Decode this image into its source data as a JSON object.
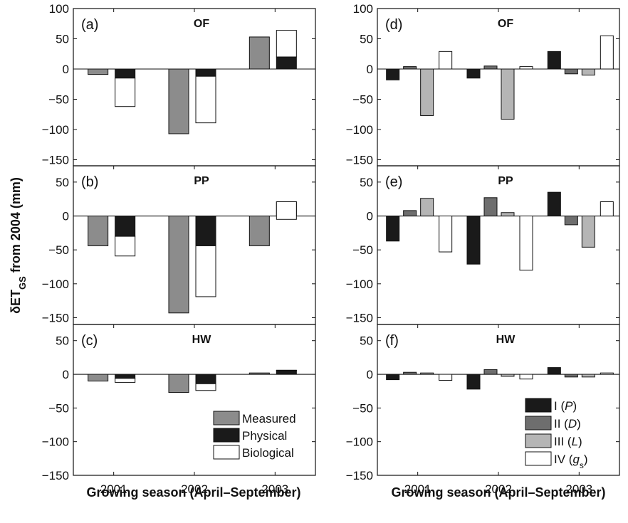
{
  "figure": {
    "ylabel": "δET",
    "ylabel_sub": "GS",
    "ylabel_rest": " from 2004 (mm)",
    "xlabel_left": "Growing season (April–September)",
    "xlabel_right": "Growing season (April–September)"
  },
  "colors": {
    "measured": "#8c8c8c",
    "physical": "#1a1a1a",
    "biological": "#ffffff",
    "I": "#1a1a1a",
    "II": "#6e6e6e",
    "III": "#b5b5b5",
    "IV": "#ffffff"
  },
  "legend_left": [
    {
      "key": "measured",
      "label": "Measured"
    },
    {
      "key": "physical",
      "label": "Physical"
    },
    {
      "key": "biological",
      "label": "Biological"
    }
  ],
  "legend_right": [
    {
      "key": "I",
      "label": "I (",
      "italic": "P",
      "tail": ")"
    },
    {
      "key": "II",
      "label": "II (",
      "italic": "D",
      "tail": ")"
    },
    {
      "key": "III",
      "label": "III (",
      "italic": "L",
      "tail": ")"
    },
    {
      "key": "IV",
      "label": "IV (",
      "italic": "g",
      "sub": "s",
      "tail": ")"
    }
  ],
  "chart_data": [
    {
      "panel": "(a)",
      "site": "OF",
      "type": "bar",
      "categories": [
        "2001",
        "2002",
        "2003"
      ],
      "ylim": [
        -160,
        100
      ],
      "yticks": [
        100,
        50,
        0,
        -50,
        -100,
        -150
      ],
      "series": [
        {
          "name": "Measured",
          "values": [
            -9,
            -107,
            53
          ]
        },
        {
          "name": "Physical",
          "values": [
            -15,
            -12,
            20
          ]
        },
        {
          "name": "Biological",
          "values": [
            -47,
            -77,
            44
          ]
        }
      ]
    },
    {
      "panel": "(b)",
      "site": "PP",
      "type": "bar",
      "categories": [
        "2001",
        "2002",
        "2003"
      ],
      "ylim": [
        -160,
        100
      ],
      "yticks": [
        50,
        0,
        -50,
        -100,
        -150
      ],
      "series": [
        {
          "name": "Measured",
          "values": [
            -44,
            -143,
            -44
          ]
        },
        {
          "name": "Physical",
          "values": [
            -30,
            -44,
            21
          ]
        },
        {
          "name": "Biological",
          "values": [
            -29,
            -75,
            -26
          ]
        }
      ]
    },
    {
      "panel": "(c)",
      "site": "HW",
      "type": "bar",
      "categories": [
        "2001",
        "2002",
        "2003"
      ],
      "ylim": [
        -160,
        100
      ],
      "yticks": [
        50,
        0,
        -50,
        -100,
        -150
      ],
      "series": [
        {
          "name": "Measured",
          "values": [
            -10,
            -27,
            2
          ]
        },
        {
          "name": "Physical",
          "values": [
            -6,
            -14,
            6
          ]
        },
        {
          "name": "Biological",
          "values": [
            -6,
            -10,
            0
          ]
        }
      ]
    },
    {
      "panel": "(d)",
      "site": "OF",
      "type": "bar",
      "categories": [
        "2001",
        "2002",
        "2003"
      ],
      "ylim": [
        -160,
        100
      ],
      "yticks": [
        100,
        50,
        0,
        -50,
        -100,
        -150
      ],
      "series": [
        {
          "name": "I (P)",
          "values": [
            -18,
            -15,
            29
          ]
        },
        {
          "name": "II (D)",
          "values": [
            4,
            5,
            -8
          ]
        },
        {
          "name": "III (L)",
          "values": [
            -77,
            -83,
            -10
          ]
        },
        {
          "name": "IV (gs)",
          "values": [
            29,
            4,
            55
          ]
        }
      ]
    },
    {
      "panel": "(e)",
      "site": "PP",
      "type": "bar",
      "categories": [
        "2001",
        "2002",
        "2003"
      ],
      "ylim": [
        -160,
        100
      ],
      "yticks": [
        50,
        0,
        -50,
        -100,
        -150
      ],
      "series": [
        {
          "name": "I (P)",
          "values": [
            -37,
            -71,
            35
          ]
        },
        {
          "name": "II (D)",
          "values": [
            8,
            27,
            -13
          ]
        },
        {
          "name": "III (L)",
          "values": [
            26,
            5,
            -46
          ]
        },
        {
          "name": "IV (gs)",
          "values": [
            -53,
            -80,
            21
          ]
        }
      ]
    },
    {
      "panel": "(f)",
      "site": "HW",
      "type": "bar",
      "categories": [
        "2001",
        "2002",
        "2003"
      ],
      "ylim": [
        -160,
        100
      ],
      "yticks": [
        50,
        0,
        -50,
        -100,
        -150
      ],
      "series": [
        {
          "name": "I (P)",
          "values": [
            -8,
            -22,
            10
          ]
        },
        {
          "name": "II (D)",
          "values": [
            3,
            7,
            -4
          ]
        },
        {
          "name": "III (L)",
          "values": [
            2,
            -3,
            -4
          ]
        },
        {
          "name": "IV (gs)",
          "values": [
            -9,
            -7,
            2
          ]
        }
      ]
    }
  ]
}
